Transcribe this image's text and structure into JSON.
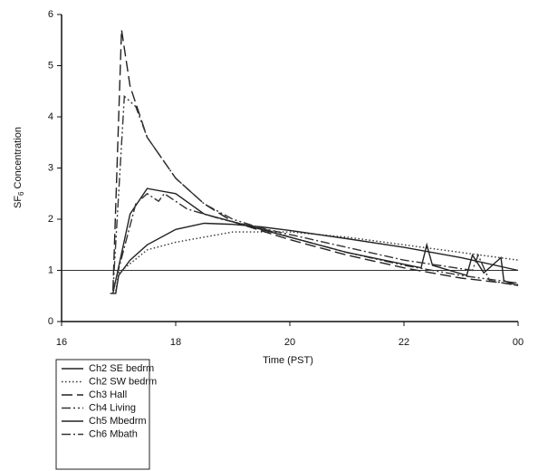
{
  "chart_data": {
    "type": "line",
    "x_label": "Time (PST)",
    "y_label": [
      "SF",
      "6",
      "Concentration"
    ],
    "xlim": [
      16,
      24
    ],
    "xticks": [
      16,
      18,
      20,
      22,
      {
        "value": 24,
        "label": "00"
      }
    ],
    "ylim": [
      0,
      6
    ],
    "yticks": [
      0,
      1,
      2,
      3,
      4,
      5,
      6
    ],
    "hline": 1,
    "legend": "below-left",
    "series": [
      {
        "name": "Ch2 SE bedrm",
        "color": "#222222",
        "dash": "solid",
        "x": [
          16.85,
          16.95,
          17.0,
          17.2,
          17.5,
          18.0,
          18.5,
          19.0,
          19.5,
          20.0,
          21.0,
          22.0,
          23.0,
          24.0
        ],
        "values": [
          0.55,
          0.55,
          0.9,
          1.2,
          1.5,
          1.8,
          1.92,
          1.9,
          1.85,
          1.78,
          1.62,
          1.45,
          1.25,
          1.0
        ]
      },
      {
        "name": "Ch2 SW bedrm",
        "color": "#333333",
        "dash": "dotted",
        "x": [
          16.95,
          17.0,
          17.5,
          18.0,
          18.5,
          19.0,
          20.0,
          21.0,
          22.0,
          23.0,
          24.0
        ],
        "values": [
          0.6,
          0.95,
          1.4,
          1.55,
          1.65,
          1.75,
          1.75,
          1.65,
          1.5,
          1.35,
          1.2
        ]
      },
      {
        "name": "Ch3 Hall",
        "color": "#222222",
        "dash": "dashed",
        "x": [
          16.9,
          17.05,
          17.2,
          17.5,
          18.0,
          18.5,
          19.0,
          20.0,
          21.0,
          22.0,
          23.0,
          24.0
        ],
        "values": [
          0.6,
          5.7,
          4.6,
          3.6,
          2.8,
          2.3,
          1.95,
          1.6,
          1.3,
          1.05,
          0.85,
          0.72
        ]
      },
      {
        "name": "Ch4 Living",
        "color": "#333333",
        "dash": "dashdotdot",
        "x": [
          16.9,
          17.1,
          17.3,
          17.5,
          18.0,
          18.5,
          19.0,
          20.0,
          21.0,
          22.0,
          23.0,
          24.0
        ],
        "values": [
          0.6,
          4.4,
          4.2,
          3.6,
          2.8,
          2.3,
          2.0,
          1.65,
          1.35,
          1.1,
          0.9,
          0.75
        ]
      },
      {
        "name": "Ch5 Mbedrm",
        "color": "#222222",
        "dash": "solid",
        "x": [
          16.9,
          17.2,
          17.5,
          18.0,
          18.5,
          19.0,
          20.0,
          21.0,
          22.3,
          22.4,
          22.5,
          23.1,
          23.2,
          23.4,
          23.7,
          23.75,
          24.0
        ],
        "values": [
          0.55,
          2.1,
          2.6,
          2.5,
          2.1,
          1.95,
          1.65,
          1.35,
          1.05,
          1.5,
          1.1,
          0.9,
          1.3,
          0.95,
          1.25,
          0.8,
          0.7
        ]
      },
      {
        "name": "Ch6 Mbath",
        "color": "#333333",
        "dash": "dashdot",
        "x": [
          16.9,
          17.3,
          17.5,
          17.7,
          17.8,
          18.2,
          18.8,
          20.0,
          21.0,
          22.0,
          23.2,
          23.3,
          23.5,
          24.0
        ],
        "values": [
          0.6,
          2.3,
          2.5,
          2.35,
          2.5,
          2.2,
          2.0,
          1.7,
          1.45,
          1.2,
          1.0,
          1.3,
          0.8,
          0.7
        ]
      }
    ]
  }
}
